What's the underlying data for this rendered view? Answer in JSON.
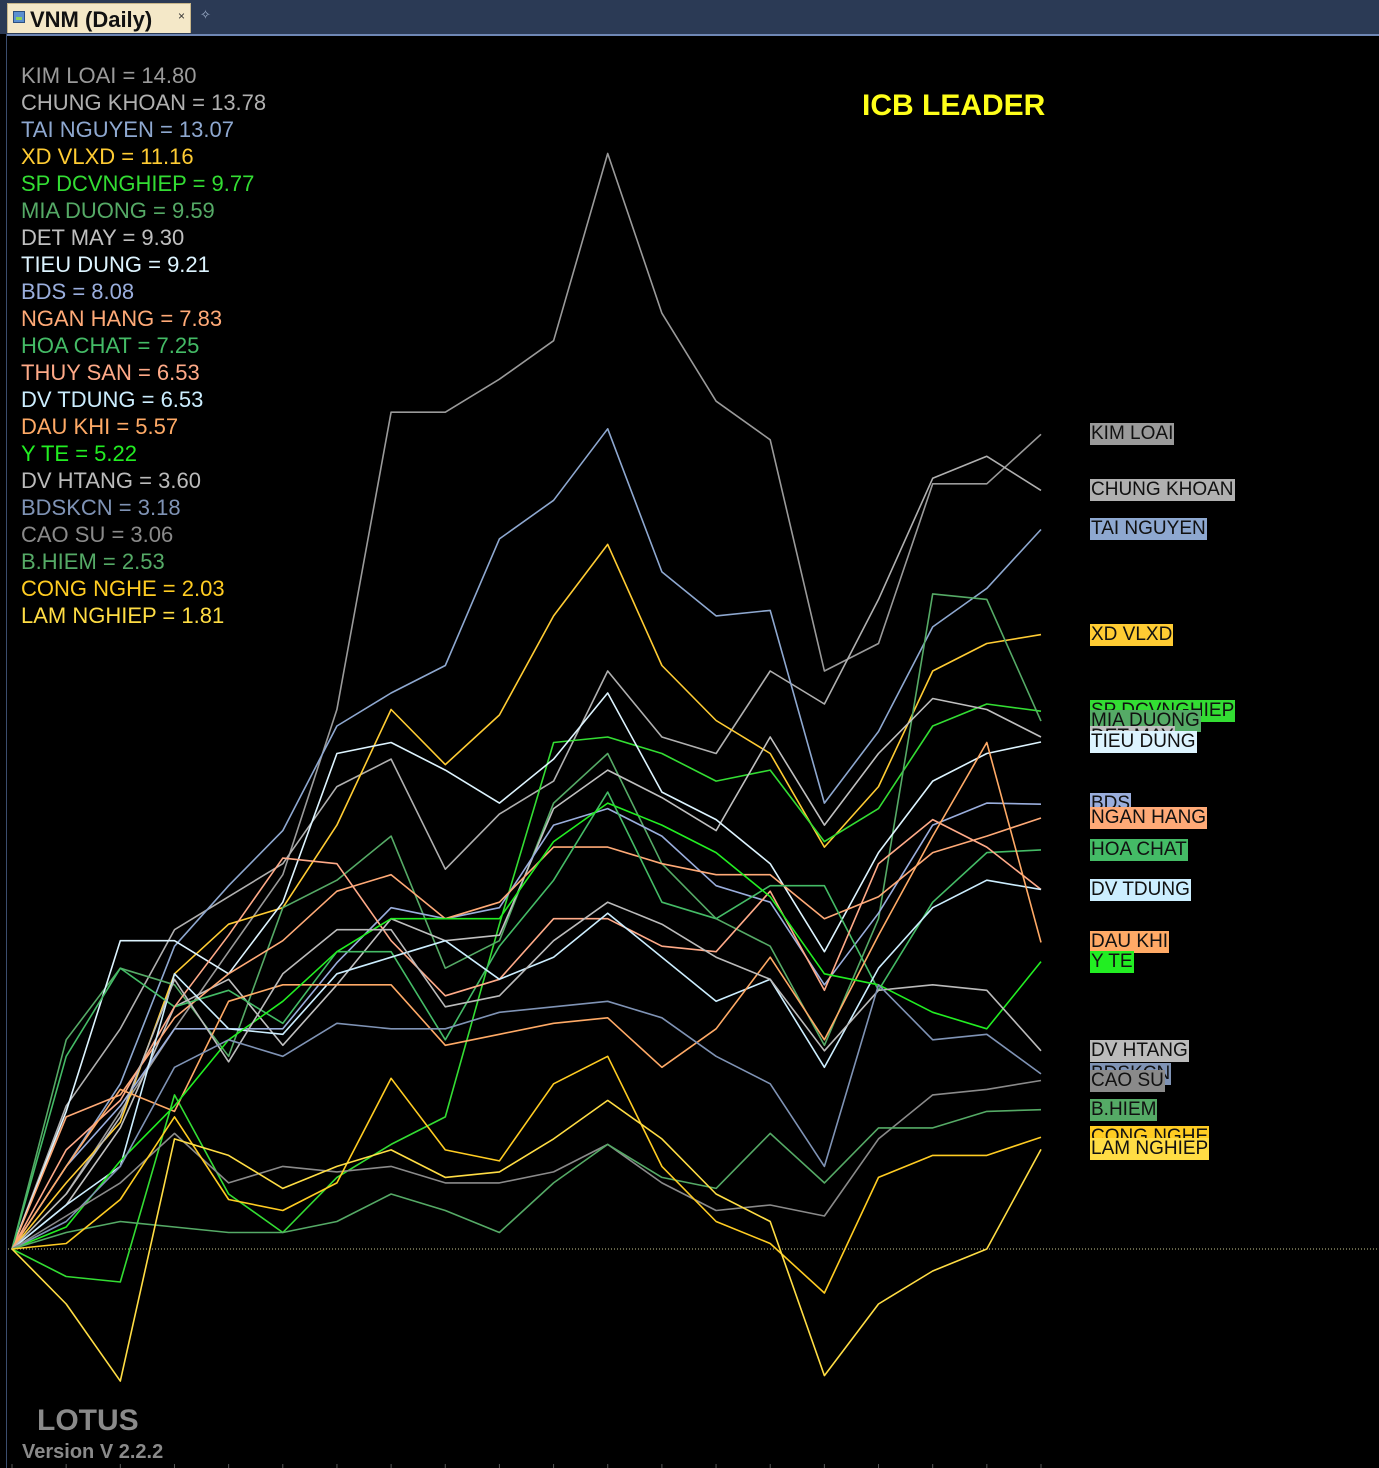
{
  "window": {
    "tab_title": "VNM (Daily)",
    "tab_close_icon": "close-icon",
    "pin_icon": "pin-icon"
  },
  "chart_data": {
    "type": "line",
    "title": "ICB LEADER",
    "x": [
      0,
      1,
      2,
      3,
      4,
      5,
      6,
      7,
      8,
      9,
      10,
      11,
      12,
      13,
      14,
      15,
      16,
      17,
      18,
      19
    ],
    "baseline": 0,
    "ylim": [
      -3,
      21.5
    ],
    "grid": false,
    "legend_position": "top-left",
    "series": [
      {
        "name": "KIM LOAI",
        "label": "KIM LOAI = 14.80",
        "last": 14.8,
        "color": "#9a9a9a",
        "values": [
          0,
          1.0,
          2.5,
          4.0,
          5.4,
          6.8,
          9.8,
          15.2,
          15.2,
          15.8,
          16.5,
          19.9,
          17.0,
          15.4,
          14.7,
          10.5,
          11.0,
          13.9,
          13.9,
          14.8
        ]
      },
      {
        "name": "CHUNG KHOAN",
        "label": "CHUNG KHOAN = 13.78",
        "last": 13.78,
        "color": "#b0b0b0",
        "values": [
          0,
          2.6,
          4.0,
          5.8,
          6.4,
          7.0,
          8.4,
          8.9,
          6.9,
          7.9,
          8.5,
          10.5,
          9.3,
          9.0,
          10.5,
          9.9,
          11.8,
          14.0,
          14.4,
          13.78
        ]
      },
      {
        "name": "TAI NGUYEN",
        "label": "TAI NGUYEN = 13.07",
        "last": 13.07,
        "color": "#8ea8d0",
        "values": [
          0,
          1.5,
          3.0,
          5.5,
          6.6,
          7.6,
          9.5,
          10.1,
          10.6,
          12.9,
          13.6,
          14.9,
          12.3,
          11.5,
          11.6,
          8.1,
          9.4,
          11.3,
          12.0,
          13.07
        ]
      },
      {
        "name": "XD VLXD",
        "label": "XD VLXD = 11.16",
        "last": 11.16,
        "color": "#ffcc33",
        "values": [
          0,
          1.2,
          2.3,
          5.0,
          5.9,
          6.2,
          7.7,
          9.8,
          8.8,
          9.7,
          11.5,
          12.8,
          10.6,
          9.6,
          9.0,
          7.3,
          8.4,
          10.5,
          11.0,
          11.16
        ]
      },
      {
        "name": "SP DCVNGHIEP",
        "label": "SP DCVNGHIEP = 9.77",
        "last": 9.77,
        "color": "#33dd33",
        "values": [
          0,
          -0.5,
          -0.6,
          2.8,
          1.0,
          0.3,
          1.3,
          1.9,
          2.4,
          5.9,
          9.2,
          9.3,
          9.0,
          8.5,
          8.7,
          7.4,
          8.0,
          9.5,
          9.9,
          9.77
        ]
      },
      {
        "name": "MIA DUONG",
        "label": "MIA DUONG = 9.59",
        "last": 9.59,
        "color": "#55aa66",
        "values": [
          0,
          3.8,
          5.1,
          4.8,
          3.5,
          6.2,
          6.7,
          7.5,
          5.1,
          5.6,
          8.1,
          9.0,
          7.0,
          6.0,
          5.5,
          3.7,
          6.0,
          11.9,
          11.8,
          9.59
        ]
      },
      {
        "name": "DET MAY",
        "label": "DET MAY = 9.30",
        "last": 9.3,
        "color": "#c0c0c0",
        "values": [
          0,
          0.8,
          2.2,
          4.4,
          4.9,
          3.7,
          4.8,
          6.0,
          5.6,
          5.7,
          8.0,
          8.7,
          8.2,
          7.6,
          9.3,
          7.7,
          9.0,
          10.0,
          9.8,
          9.3
        ]
      },
      {
        "name": "TIEU DUNG",
        "label": "TIEU DUNG = 9.21",
        "last": 9.21,
        "color": "#ddf4ff",
        "values": [
          0,
          2.5,
          5.6,
          5.6,
          5.0,
          6.3,
          9.0,
          9.2,
          8.7,
          8.1,
          8.9,
          10.1,
          8.3,
          7.8,
          7.0,
          5.4,
          7.2,
          8.5,
          9.0,
          9.21
        ]
      },
      {
        "name": "BDS",
        "label": "BDS = 8.08",
        "last": 8.08,
        "color": "#9aaedd",
        "values": [
          0,
          1.5,
          2.6,
          4.0,
          4.0,
          4.0,
          5.2,
          6.2,
          6.0,
          6.2,
          7.7,
          8.0,
          7.5,
          6.6,
          6.3,
          4.8,
          6.1,
          7.7,
          8.1,
          8.08
        ]
      },
      {
        "name": "NGAN HANG",
        "label": "NGAN HANG = 7.83",
        "last": 7.83,
        "color": "#ffaa77",
        "values": [
          0,
          2.4,
          2.8,
          4.2,
          5.0,
          5.6,
          6.5,
          6.8,
          6.0,
          6.3,
          7.3,
          7.3,
          7.0,
          6.8,
          6.8,
          6.0,
          6.4,
          7.2,
          7.5,
          7.83
        ]
      },
      {
        "name": "HOA CHAT",
        "label": "HOA CHAT = 7.25",
        "last": 7.25,
        "color": "#44bb66",
        "values": [
          0,
          3.5,
          5.1,
          4.4,
          4.7,
          4.1,
          5.4,
          5.4,
          3.8,
          5.5,
          6.7,
          8.3,
          6.3,
          6.0,
          6.6,
          6.6,
          4.7,
          6.3,
          7.2,
          7.25
        ]
      },
      {
        "name": "THUY SAN",
        "label": "THUY SAN = 6.53",
        "last": 6.53,
        "color": "#ffaa88",
        "values": [
          0,
          1.8,
          2.7,
          4.4,
          5.7,
          7.1,
          7.0,
          5.6,
          4.6,
          4.9,
          6.0,
          6.0,
          5.5,
          5.4,
          6.5,
          4.7,
          7.0,
          7.8,
          7.3,
          6.53
        ]
      },
      {
        "name": "DV TDUNG",
        "label": "DV TDUNG = 6.53",
        "last": 6.53,
        "color": "#cceeff",
        "values": [
          0,
          0.8,
          1.5,
          5.0,
          4.0,
          3.9,
          5.0,
          5.3,
          5.6,
          4.9,
          5.3,
          6.1,
          5.3,
          4.5,
          4.9,
          3.3,
          5.1,
          6.2,
          6.7,
          6.53
        ]
      },
      {
        "name": "DAU KHI",
        "label": "DAU KHI = 5.57",
        "last": 5.57,
        "color": "#ffaa66",
        "values": [
          0,
          1.5,
          2.9,
          2.5,
          4.5,
          4.8,
          4.8,
          4.8,
          3.7,
          3.9,
          4.1,
          4.2,
          3.3,
          4.0,
          5.3,
          3.8,
          5.7,
          7.5,
          9.2,
          5.57
        ]
      },
      {
        "name": "Y TE",
        "label": "Y TE = 5.22",
        "last": 5.22,
        "color": "#22ee22",
        "values": [
          0,
          0.4,
          1.6,
          2.6,
          3.8,
          4.5,
          5.4,
          6.0,
          6.0,
          6.0,
          7.4,
          8.1,
          7.7,
          7.2,
          6.4,
          5.0,
          4.8,
          4.3,
          4.0,
          5.22
        ]
      },
      {
        "name": "DV HTANG",
        "label": "DV HTANG = 3.60",
        "last": 3.6,
        "color": "#bbbbbb",
        "values": [
          0,
          1.0,
          2.4,
          4.9,
          3.4,
          5.0,
          5.8,
          5.8,
          4.4,
          4.6,
          5.6,
          6.3,
          5.9,
          5.3,
          4.9,
          3.6,
          4.7,
          4.8,
          4.7,
          3.6
        ]
      },
      {
        "name": "BDSKCN",
        "label": "BDSKCN = 3.18",
        "last": 3.18,
        "color": "#7f93b5",
        "values": [
          0,
          0.5,
          1.5,
          3.3,
          3.8,
          3.5,
          4.1,
          4.0,
          4.0,
          4.3,
          4.4,
          4.5,
          4.2,
          3.5,
          3.0,
          1.5,
          4.8,
          3.8,
          3.9,
          3.18
        ]
      },
      {
        "name": "CAO SU",
        "label": "CAO SU = 3.06",
        "last": 3.06,
        "color": "#8a8a8a",
        "values": [
          0,
          0.6,
          1.2,
          2.1,
          1.2,
          1.5,
          1.4,
          1.5,
          1.2,
          1.2,
          1.4,
          1.9,
          1.2,
          0.7,
          0.8,
          0.6,
          2.0,
          2.8,
          2.9,
          3.06
        ]
      },
      {
        "name": "B.HIEM",
        "label": "B.HIEM = 2.53",
        "last": 2.53,
        "color": "#55aa66",
        "values": [
          0,
          0.3,
          0.5,
          0.4,
          0.3,
          0.3,
          0.5,
          1.0,
          0.7,
          0.3,
          1.2,
          1.9,
          1.3,
          1.1,
          2.1,
          1.2,
          2.2,
          2.2,
          2.5,
          2.53
        ]
      },
      {
        "name": "CONG NGHE",
        "label": "CONG NGHE = 2.03",
        "last": 2.03,
        "color": "#ffcc22",
        "values": [
          0,
          0.1,
          0.9,
          2.4,
          0.9,
          0.7,
          1.2,
          3.1,
          1.8,
          1.6,
          3.0,
          3.5,
          1.5,
          0.5,
          0.1,
          -0.8,
          1.3,
          1.7,
          1.7,
          2.03
        ]
      },
      {
        "name": "LAM NGHIEP",
        "label": "LAM NGHIEP = 1.81",
        "last": 1.81,
        "color": "#ffdd44",
        "values": [
          0,
          -1.0,
          -2.4,
          2.0,
          1.7,
          1.1,
          1.5,
          1.8,
          1.3,
          1.4,
          2.0,
          2.7,
          2.0,
          1.0,
          0.5,
          -2.3,
          -1.0,
          -0.4,
          0.0,
          1.81
        ]
      }
    ]
  },
  "brand": {
    "name": "LOTUS",
    "version": "Version V 2.2.2"
  }
}
